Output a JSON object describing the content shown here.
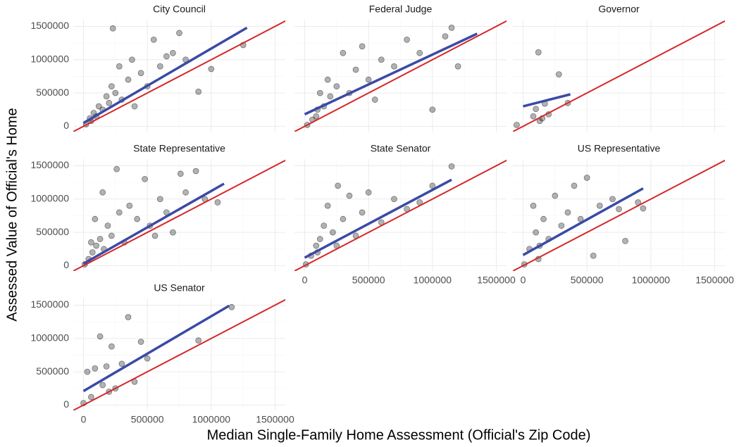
{
  "xlabel": "Median Single-Family Home Assessment (Official's Zip Code)",
  "ylabel": "Assessed Value of Official's Home",
  "chart_data": [
    {
      "type": "scatter",
      "title": "City Council",
      "xlim": [
        -80000,
        1580000
      ],
      "ylim": [
        -80000,
        1600000
      ],
      "xticks": [
        0,
        500000,
        1000000,
        1500000
      ],
      "yticks": [
        0,
        500000,
        1000000,
        1500000
      ],
      "grid": true,
      "series": [
        {
          "type": "scatter",
          "color": "#000000",
          "opacity": 0.3,
          "x": [
            20000,
            50000,
            80000,
            100000,
            120000,
            150000,
            180000,
            200000,
            220000,
            250000,
            280000,
            300000,
            350000,
            380000,
            400000,
            450000,
            500000,
            550000,
            600000,
            650000,
            700000,
            750000,
            800000,
            900000,
            1000000,
            1250000,
            230000,
            60000
          ],
          "values": [
            30000,
            120000,
            200000,
            150000,
            300000,
            250000,
            450000,
            350000,
            600000,
            500000,
            900000,
            400000,
            700000,
            1000000,
            300000,
            800000,
            600000,
            1300000,
            900000,
            1050000,
            1100000,
            1400000,
            1000000,
            520000,
            860000,
            1220000,
            1470000,
            80000
          ]
        },
        {
          "type": "line",
          "color": "#3a4aa5",
          "x": [
            0,
            1280000
          ],
          "values": [
            50000,
            1480000
          ]
        },
        {
          "type": "line",
          "color": "#d62728",
          "x": [
            -100000,
            1600000
          ],
          "values": [
            -100000,
            1600000
          ]
        }
      ]
    },
    {
      "type": "scatter",
      "title": "Federal Judge",
      "xlim": [
        -80000,
        1580000
      ],
      "ylim": [
        -80000,
        1600000
      ],
      "xticks": [
        0,
        500000,
        1000000,
        1500000
      ],
      "yticks": [
        0,
        500000,
        1000000,
        1500000
      ],
      "grid": true,
      "series": [
        {
          "type": "scatter",
          "color": "#000000",
          "opacity": 0.3,
          "x": [
            20000,
            60000,
            100000,
            120000,
            150000,
            180000,
            200000,
            250000,
            300000,
            350000,
            400000,
            450000,
            500000,
            550000,
            600000,
            700000,
            800000,
            900000,
            1000000,
            1100000,
            1200000,
            1150000,
            90000
          ],
          "values": [
            20000,
            100000,
            250000,
            500000,
            300000,
            700000,
            450000,
            600000,
            1100000,
            500000,
            850000,
            1200000,
            700000,
            400000,
            1000000,
            900000,
            1300000,
            1100000,
            250000,
            1350000,
            900000,
            1480000,
            150000
          ]
        },
        {
          "type": "line",
          "color": "#3a4aa5",
          "x": [
            0,
            1350000
          ],
          "values": [
            180000,
            1390000
          ]
        },
        {
          "type": "line",
          "color": "#d62728",
          "x": [
            -100000,
            1600000
          ],
          "values": [
            -100000,
            1600000
          ]
        }
      ]
    },
    {
      "type": "scatter",
      "title": "Governor",
      "xlim": [
        -80000,
        1580000
      ],
      "ylim": [
        -80000,
        1600000
      ],
      "xticks": [
        0,
        500000,
        1000000,
        1500000
      ],
      "yticks": [
        0,
        500000,
        1000000,
        1500000
      ],
      "grid": true,
      "series": [
        {
          "type": "scatter",
          "color": "#000000",
          "opacity": 0.3,
          "x": [
            -50000,
            80000,
            100000,
            120000,
            130000,
            170000,
            200000,
            280000,
            350000,
            150000
          ],
          "values": [
            20000,
            150000,
            260000,
            1110000,
            80000,
            340000,
            180000,
            780000,
            350000,
            120000
          ]
        },
        {
          "type": "line",
          "color": "#3a4aa5",
          "x": [
            0,
            370000
          ],
          "values": [
            300000,
            480000
          ]
        },
        {
          "type": "line",
          "color": "#d62728",
          "x": [
            -100000,
            1600000
          ],
          "values": [
            -100000,
            1600000
          ]
        }
      ]
    },
    {
      "type": "scatter",
      "title": "State Representative",
      "xlim": [
        -80000,
        1580000
      ],
      "ylim": [
        -80000,
        1600000
      ],
      "xticks": [
        0,
        500000,
        1000000,
        1500000
      ],
      "yticks": [
        0,
        500000,
        1000000,
        1500000
      ],
      "grid": true,
      "series": [
        {
          "type": "scatter",
          "color": "#000000",
          "opacity": 0.3,
          "x": [
            10000,
            40000,
            70000,
            100000,
            130000,
            160000,
            190000,
            220000,
            260000,
            280000,
            320000,
            360000,
            420000,
            480000,
            520000,
            560000,
            600000,
            650000,
            700000,
            760000,
            800000,
            880000,
            950000,
            1050000,
            150000,
            90000,
            60000
          ],
          "values": [
            20000,
            100000,
            200000,
            300000,
            400000,
            250000,
            600000,
            450000,
            1450000,
            800000,
            350000,
            900000,
            700000,
            1300000,
            600000,
            450000,
            1000000,
            800000,
            500000,
            1380000,
            1100000,
            1420000,
            1000000,
            950000,
            1100000,
            700000,
            350000
          ]
        },
        {
          "type": "line",
          "color": "#3a4aa5",
          "x": [
            0,
            1100000
          ],
          "values": [
            30000,
            1230000
          ]
        },
        {
          "type": "line",
          "color": "#d62728",
          "x": [
            -100000,
            1600000
          ],
          "values": [
            -100000,
            1600000
          ]
        }
      ]
    },
    {
      "type": "scatter",
      "title": "State Senator",
      "xlim": [
        -80000,
        1580000
      ],
      "ylim": [
        -80000,
        1600000
      ],
      "xticks": [
        0,
        500000,
        1000000,
        1500000
      ],
      "yticks": [
        0,
        500000,
        1000000,
        1500000
      ],
      "grid": true,
      "series": [
        {
          "type": "scatter",
          "color": "#000000",
          "opacity": 0.3,
          "x": [
            10000,
            50000,
            90000,
            120000,
            150000,
            180000,
            220000,
            260000,
            300000,
            350000,
            400000,
            450000,
            500000,
            600000,
            700000,
            800000,
            900000,
            1000000,
            1150000,
            250000,
            100000
          ],
          "values": [
            20000,
            150000,
            300000,
            400000,
            600000,
            900000,
            500000,
            1200000,
            700000,
            1050000,
            450000,
            800000,
            1100000,
            650000,
            1000000,
            850000,
            950000,
            1200000,
            1490000,
            300000,
            200000
          ]
        },
        {
          "type": "line",
          "color": "#3a4aa5",
          "x": [
            0,
            1150000
          ],
          "values": [
            120000,
            1290000
          ]
        },
        {
          "type": "line",
          "color": "#d62728",
          "x": [
            -100000,
            1600000
          ],
          "values": [
            -100000,
            1600000
          ]
        }
      ]
    },
    {
      "type": "scatter",
      "title": "US Representative",
      "xlim": [
        -80000,
        1580000
      ],
      "ylim": [
        -80000,
        1600000
      ],
      "xticks": [
        0,
        500000,
        1000000,
        1500000
      ],
      "yticks": [
        0,
        500000,
        1000000,
        1500000
      ],
      "grid": true,
      "series": [
        {
          "type": "scatter",
          "color": "#000000",
          "opacity": 0.3,
          "x": [
            10000,
            50000,
            80000,
            100000,
            130000,
            160000,
            200000,
            250000,
            300000,
            350000,
            400000,
            450000,
            500000,
            550000,
            600000,
            700000,
            750000,
            800000,
            900000,
            940000,
            120000
          ],
          "values": [
            20000,
            250000,
            900000,
            500000,
            300000,
            700000,
            400000,
            1050000,
            600000,
            800000,
            1200000,
            700000,
            1320000,
            150000,
            900000,
            1000000,
            850000,
            370000,
            950000,
            860000,
            100000
          ]
        },
        {
          "type": "line",
          "color": "#3a4aa5",
          "x": [
            0,
            940000
          ],
          "values": [
            160000,
            1160000
          ]
        },
        {
          "type": "line",
          "color": "#d62728",
          "x": [
            -100000,
            1600000
          ],
          "values": [
            -100000,
            1600000
          ]
        }
      ]
    },
    {
      "type": "scatter",
      "title": "US Senator",
      "xlim": [
        -80000,
        1580000
      ],
      "ylim": [
        -80000,
        1600000
      ],
      "xticks": [
        0,
        500000,
        1000000,
        1500000
      ],
      "yticks": [
        0,
        500000,
        1000000,
        1500000
      ],
      "grid": true,
      "series": [
        {
          "type": "scatter",
          "color": "#000000",
          "opacity": 0.3,
          "x": [
            0,
            30000,
            60000,
            90000,
            130000,
            150000,
            180000,
            220000,
            250000,
            300000,
            350000,
            400000,
            450000,
            500000,
            900000,
            1160000,
            200000
          ],
          "values": [
            30000,
            500000,
            120000,
            550000,
            1030000,
            300000,
            580000,
            880000,
            250000,
            620000,
            1320000,
            350000,
            950000,
            700000,
            970000,
            1470000,
            200000
          ]
        },
        {
          "type": "line",
          "color": "#3a4aa5",
          "x": [
            0,
            1140000
          ],
          "values": [
            210000,
            1490000
          ]
        },
        {
          "type": "line",
          "color": "#d62728",
          "x": [
            -100000,
            1600000
          ],
          "values": [
            -100000,
            1600000
          ]
        }
      ]
    }
  ]
}
